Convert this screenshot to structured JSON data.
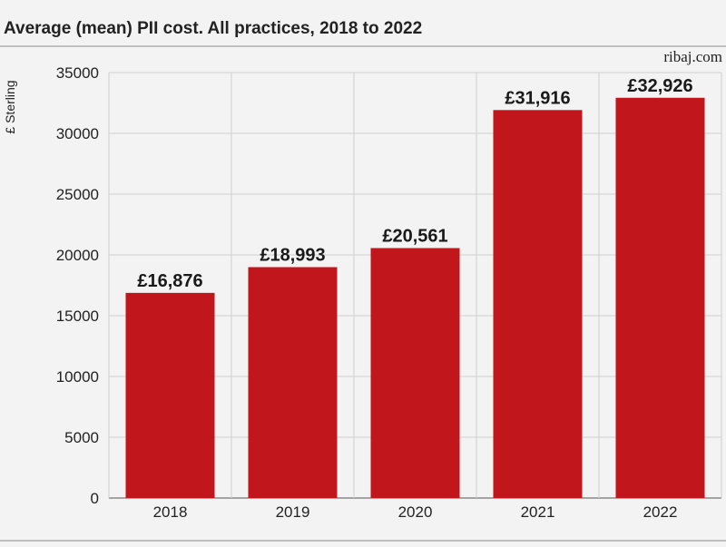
{
  "colors": {
    "bar": "#c0161c",
    "grid": "#cfcfcf",
    "axis": "#555555",
    "background": "#f3f3f3"
  },
  "header": {
    "title": "Average (mean) PII cost. All practices, 2018 to 2022",
    "source": "ribaj.com"
  },
  "chart_data": {
    "type": "bar",
    "title": "Average (mean) PII cost. All practices, 2018 to 2022",
    "xlabel": "",
    "ylabel": "£ Sterling",
    "categories": [
      "2018",
      "2019",
      "2020",
      "2021",
      "2022"
    ],
    "values": [
      16876,
      18993,
      20561,
      31916,
      32926
    ],
    "value_labels": [
      "£16,876",
      "£18,993",
      "£20,561",
      "£31,916",
      "£32,926"
    ],
    "ylim": [
      0,
      35000
    ],
    "yticks": [
      "0",
      "5000",
      "10000",
      "15000",
      "20000",
      "25000",
      "30000",
      "35000"
    ],
    "grid": true
  }
}
